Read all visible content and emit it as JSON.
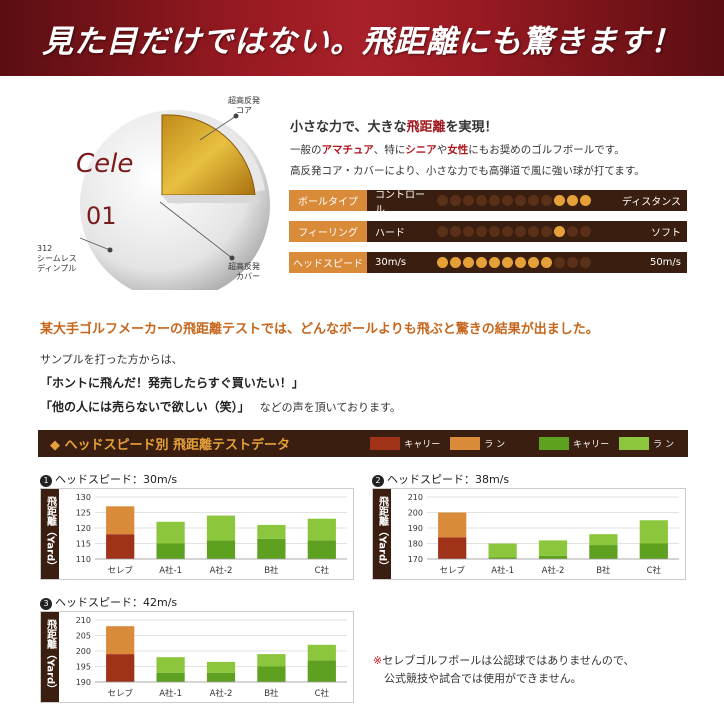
{
  "banner": {
    "title": "見た目だけではない。飛距離にも驚きます！"
  },
  "ball": {
    "logo": "Cele",
    "number": "01",
    "label_core": [
      "超高反発",
      "コア"
    ],
    "label_dimple": [
      "312",
      "シームレス",
      "ディンプル"
    ],
    "label_cover": [
      "超高反発",
      "カバー"
    ]
  },
  "intro": {
    "head_pre": "小さな力で、大きな",
    "head_accent": "飛距離",
    "head_post": "を実現！",
    "line1_a": "一般の",
    "line1_b": "アマチュア",
    "line1_c": "、特に",
    "line1_d": "シニア",
    "line1_e": "や",
    "line1_f": "女性",
    "line1_g": "にもお奨めのゴルフボールです。",
    "line2": "高反発コア・カバーにより、小さな力でも高弾道で風に強い球が打てます。"
  },
  "specs": [
    {
      "label": "ボールタイプ",
      "left": "コントロール",
      "right": "ディスタンス",
      "total": 12,
      "on": [
        9,
        10,
        11
      ]
    },
    {
      "label": "フィーリング",
      "left": "ハード",
      "right": "ソフト",
      "total": 12,
      "on": [
        9
      ]
    },
    {
      "label": "ヘッドスピード",
      "left": "30m/s",
      "right": "50m/s",
      "total": 12,
      "on": [
        0,
        1,
        2,
        3,
        4,
        5,
        6,
        7,
        8
      ]
    }
  ],
  "mid": {
    "head": "某大手ゴルフメーカーの飛距離テストでは、どんなボールよりも飛ぶと驚きの結果が出ました。",
    "sample": "サンプルを打った方からは、",
    "quote1": "「ホントに飛んだ！発売したらすぐ買いたい！」",
    "quote2": "「他の人には売らないで欲しい（笑）」",
    "quote2_tail": "などの声を頂いております。"
  },
  "chart_header": {
    "title": "◆ ヘッドスピード別  飛距離テストデータ",
    "legend": [
      {
        "label": "キャリー",
        "color": "#a0321a"
      },
      {
        "label": "ラ ン",
        "color": "#d98b3a"
      },
      {
        "label": "キャリー",
        "color": "#5ea020"
      },
      {
        "label": "ラ ン",
        "color": "#8cc63c"
      }
    ]
  },
  "colors": {
    "celeb_carry": "#a0321a",
    "celeb_run": "#d98b3a",
    "other_carry": "#5ea020",
    "other_run": "#8cc63c"
  },
  "chart_data": [
    {
      "type": "bar",
      "title": "ヘッドスピード：30m/s",
      "num": "1",
      "ylabel": "飛距離（Yard）",
      "categories": [
        "セレブ",
        "A社-1",
        "A社-2",
        "B社",
        "C社"
      ],
      "ylim": [
        110,
        130
      ],
      "yticks": [
        110,
        115,
        120,
        125,
        130
      ],
      "series": [
        {
          "name": "キャリー",
          "values": [
            118,
            115,
            116,
            116.5,
            116
          ]
        },
        {
          "name": "ラン",
          "values": [
            9,
            7,
            8,
            4.5,
            7
          ]
        }
      ]
    },
    {
      "type": "bar",
      "title": "ヘッドスピード：38m/s",
      "num": "2",
      "ylabel": "飛距離（Yard）",
      "categories": [
        "セレブ",
        "A社-1",
        "A社-2",
        "B社",
        "C社"
      ],
      "ylim": [
        170,
        210
      ],
      "yticks": [
        170,
        180,
        190,
        200,
        210
      ],
      "series": [
        {
          "name": "キャリー",
          "values": [
            184,
            171,
            172,
            179,
            180
          ]
        },
        {
          "name": "ラン",
          "values": [
            16,
            9,
            10,
            7,
            15
          ]
        }
      ]
    },
    {
      "type": "bar",
      "title": "ヘッドスピード：42m/s",
      "num": "3",
      "ylabel": "飛距離（Yard）",
      "categories": [
        "セレブ",
        "A社-1",
        "A社-2",
        "B社",
        "C社"
      ],
      "ylim": [
        190,
        210
      ],
      "yticks": [
        190,
        195,
        200,
        205,
        210
      ],
      "series": [
        {
          "name": "キャリー",
          "values": [
            199,
            193,
            193,
            195,
            197
          ]
        },
        {
          "name": "ラン",
          "values": [
            9,
            5,
            3.5,
            4,
            5
          ]
        }
      ]
    }
  ],
  "note": {
    "mark": "※",
    "line1": "セレブゴルフボールは公認球ではありませんので、",
    "line2": "公式競技や試合では使用ができません。"
  }
}
